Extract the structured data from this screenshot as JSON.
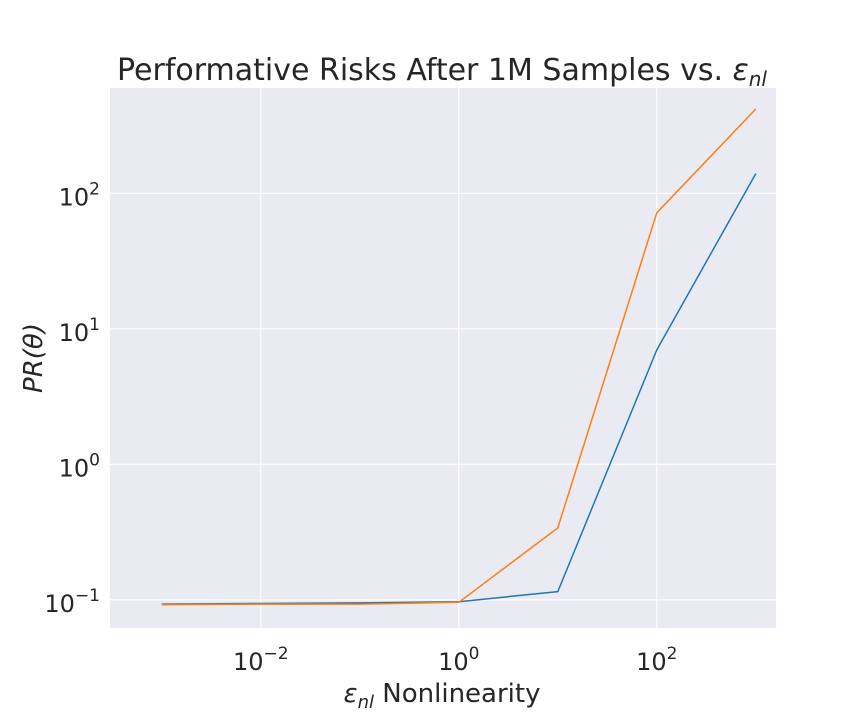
{
  "chart_data": {
    "type": "line",
    "title": "Performative Risks After 1M Samples vs. ",
    "title_math": "ε",
    "title_math_sub": "nl",
    "xlabel_math": "ε",
    "xlabel_math_sub": "nl",
    "xlabel": " Nonlinearity",
    "ylabel": "PR(θ)",
    "x_scale": "log",
    "y_scale": "log",
    "xlim": [
      0.0003,
      1600
    ],
    "ylim": [
      0.062,
      600
    ],
    "x_ticks": [
      {
        "value": 0.01,
        "base": "10",
        "exp": "−2"
      },
      {
        "value": 1,
        "base": "10",
        "exp": "0"
      },
      {
        "value": 100,
        "base": "10",
        "exp": "2"
      }
    ],
    "y_ticks": [
      {
        "value": 0.1,
        "base": "10",
        "exp": "−1"
      },
      {
        "value": 1,
        "base": "10",
        "exp": "0"
      },
      {
        "value": 10,
        "base": "10",
        "exp": "1"
      },
      {
        "value": 100,
        "base": "10",
        "exp": "2"
      }
    ],
    "grid": true,
    "background": "#eaeaf2",
    "series": [
      {
        "color": "#1f77b4",
        "x": [
          0.001,
          0.01,
          0.1,
          1,
          10,
          100,
          1000
        ],
        "y": [
          0.093,
          0.094,
          0.095,
          0.097,
          0.115,
          7.0,
          140
        ]
      },
      {
        "color": "#ff7f0e",
        "x": [
          0.001,
          0.01,
          0.1,
          1,
          10,
          100,
          1000
        ],
        "y": [
          0.092,
          0.093,
          0.093,
          0.096,
          0.34,
          72,
          420
        ]
      }
    ]
  }
}
